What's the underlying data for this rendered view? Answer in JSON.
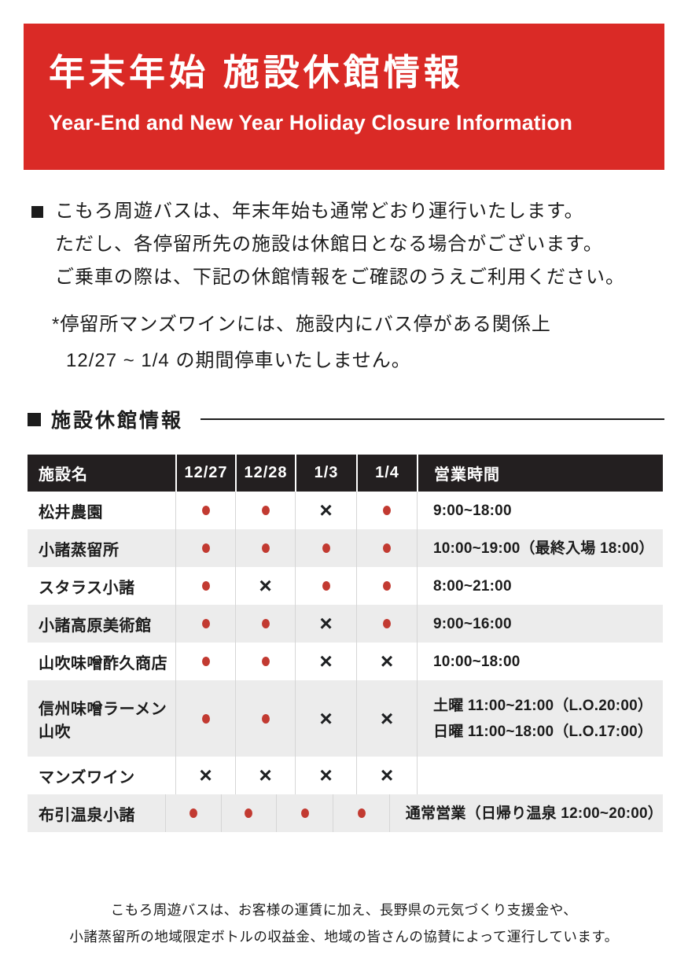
{
  "banner": {
    "title": "年末年始 施設休館情報",
    "subtitle": "Year-End and New Year Holiday Closure Information"
  },
  "notice": {
    "lines": [
      "こもろ周遊バスは、年末年始も通常どおり運行いたします。",
      "ただし、各停留所先の施設は休館日となる場合がございます。",
      "ご乗車の際は、下記の休館情報をご確認のうえご利用ください。"
    ]
  },
  "note": {
    "lines": [
      "*停留所マンズワインには、施設内にバス停がある関係上",
      "12/27 ~ 1/4 の期間停車いたしません。"
    ]
  },
  "section": {
    "title": "施設休館情報"
  },
  "table": {
    "headers": [
      "施設名",
      "12/27",
      "12/28",
      "1/3",
      "1/4",
      "営業時間"
    ],
    "open_mark_name": "open-circle-mark",
    "closed_mark_name": "closed-x-mark",
    "closed_mark_glyph": "×",
    "rows": [
      {
        "name": "松井農園",
        "marks": [
          "o",
          "o",
          "x",
          "o"
        ],
        "hours": [
          "9:00~18:00"
        ]
      },
      {
        "name": "小諸蒸留所",
        "marks": [
          "o",
          "o",
          "o",
          "o"
        ],
        "hours": [
          "10:00~19:00（最終入場 18:00）"
        ]
      },
      {
        "name": "スタラス小諸",
        "marks": [
          "o",
          "x",
          "o",
          "o"
        ],
        "hours": [
          "8:00~21:00"
        ]
      },
      {
        "name": "小諸高原美術館",
        "marks": [
          "o",
          "o",
          "x",
          "o"
        ],
        "hours": [
          "9:00~16:00"
        ]
      },
      {
        "name": "山吹味噌酢久商店",
        "marks": [
          "o",
          "o",
          "x",
          "x"
        ],
        "hours": [
          "10:00~18:00"
        ]
      },
      {
        "name": "信州味噌ラーメン山吹",
        "marks": [
          "o",
          "o",
          "x",
          "x"
        ],
        "hours": [
          "土曜 11:00~21:00（L.O.20:00）",
          "日曜 11:00~18:00（L.O.17:00）"
        ]
      },
      {
        "name": "マンズワイン",
        "marks": [
          "x",
          "x",
          "x",
          "x"
        ],
        "hours": []
      },
      {
        "name": "布引温泉小諸",
        "marks": [
          "o",
          "o",
          "o",
          "o"
        ],
        "hours": [
          "通常営業（日帰り温泉 12:00~20:00）"
        ]
      }
    ]
  },
  "footer": {
    "lines": [
      "こもろ周遊バスは、お客様の運賃に加え、長野県の元気づくり支援金や、",
      "小諸蒸留所の地域限定ボトルの収益金、地域の皆さんの協賛によって運行しています。"
    ]
  },
  "colors": {
    "banner_red": "#DA2A26",
    "ring_red": "#C23A31",
    "table_header_bg": "#231F20",
    "row_stripe": "#ECECEC",
    "ink": "#1C1C1C",
    "divider": "#D6D6D6"
  }
}
